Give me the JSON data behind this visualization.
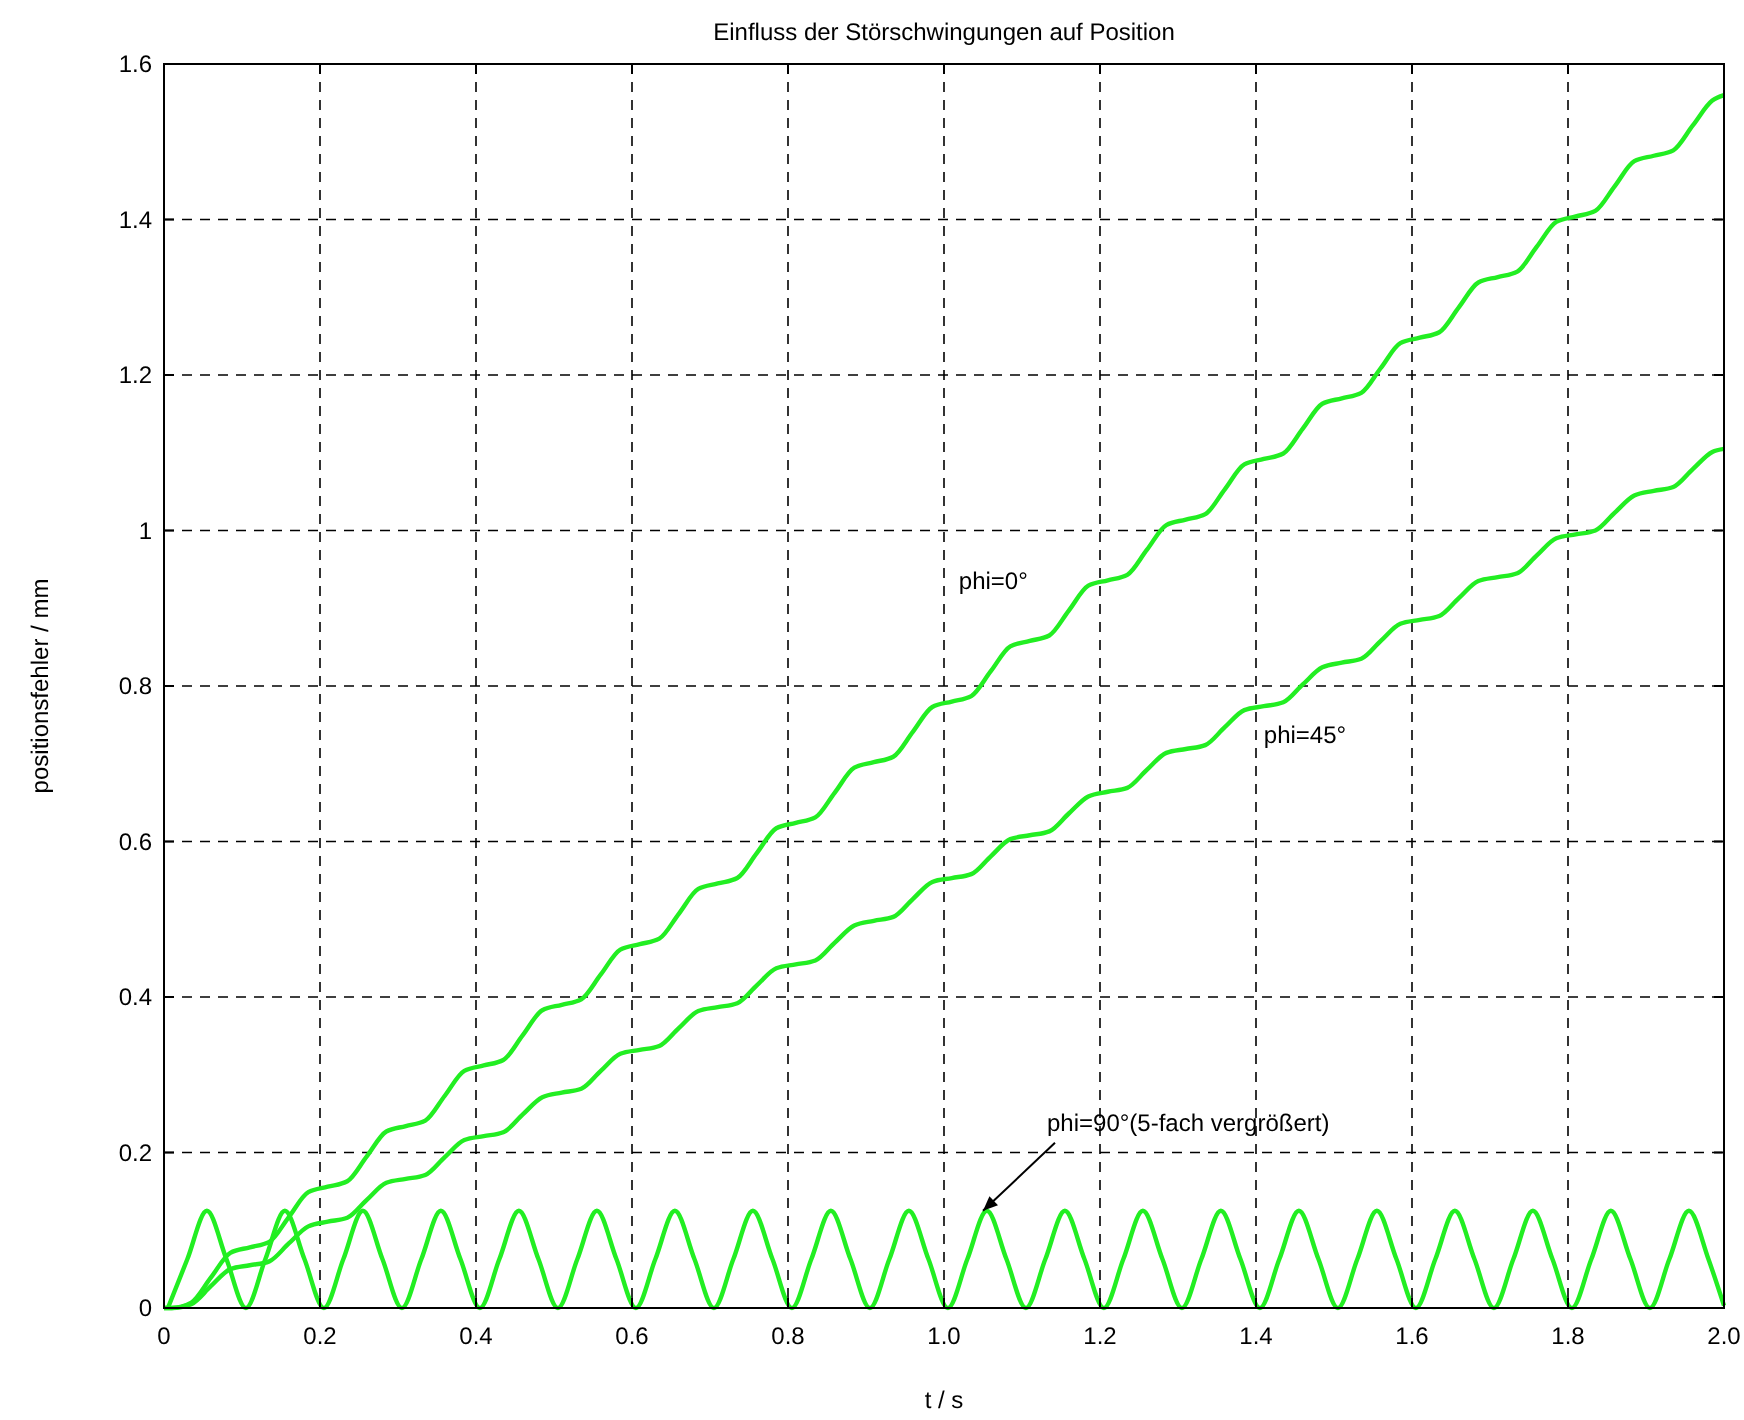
{
  "chart_data": {
    "type": "line",
    "title": "Einfluss der Störschwingungen auf Position",
    "xlabel": "t / s",
    "ylabel": "positionsfehler / mm",
    "xlim": [
      0,
      2
    ],
    "ylim": [
      0,
      1.6
    ],
    "xticks": [
      0,
      0.2,
      0.4,
      0.6,
      0.8,
      {
        "value": 1,
        "label": "1.0"
      },
      1.2,
      1.4,
      1.6,
      1.8,
      {
        "value": 2,
        "label": "2.0"
      }
    ],
    "yticks": [
      0,
      0.2,
      0.4,
      0.6,
      0.8,
      1,
      1.2,
      1.4,
      1.6
    ],
    "grid": true,
    "line_style": "solid",
    "marker": "none",
    "annotations": [
      {
        "text": "phi=90°(5-fach vergrößert)",
        "x": 1.05,
        "y": 0.125
      }
    ],
    "series": [
      {
        "name": "phi=0°",
        "color": "#22ee22",
        "x": [
          0,
          0.01,
          0.035,
          0.06,
          0.085,
          0.11,
          0.135,
          0.16,
          0.185,
          0.21,
          0.235,
          0.26,
          0.285,
          0.31,
          0.335,
          0.36,
          0.385,
          0.41,
          0.435,
          0.46,
          0.485,
          0.51,
          0.535,
          0.56,
          0.585,
          0.61,
          0.635,
          0.66,
          0.685,
          0.71,
          0.735,
          0.76,
          0.785,
          0.81,
          0.835,
          0.86,
          0.885,
          0.91,
          0.935,
          0.96,
          0.985,
          1.01,
          1.035,
          1.06,
          1.085,
          1.11,
          1.135,
          1.16,
          1.185,
          1.21,
          1.235,
          1.26,
          1.285,
          1.31,
          1.335,
          1.36,
          1.385,
          1.41,
          1.435,
          1.46,
          1.485,
          1.51,
          1.535,
          1.56,
          1.585,
          1.61,
          1.635,
          1.66,
          1.685,
          1.71,
          1.735,
          1.76,
          1.785,
          1.81,
          1.835,
          1.86,
          1.885,
          1.91,
          1.935,
          1.96,
          1.985,
          2
        ],
        "values": [
          0,
          0,
          0.007,
          0.039,
          0.071,
          0.078,
          0.085,
          0.117,
          0.149,
          0.156,
          0.163,
          0.195,
          0.227,
          0.234,
          0.241,
          0.273,
          0.305,
          0.312,
          0.319,
          0.351,
          0.383,
          0.39,
          0.397,
          0.429,
          0.461,
          0.468,
          0.475,
          0.507,
          0.539,
          0.546,
          0.553,
          0.585,
          0.617,
          0.624,
          0.631,
          0.663,
          0.695,
          0.702,
          0.709,
          0.741,
          0.773,
          0.78,
          0.787,
          0.819,
          0.851,
          0.858,
          0.865,
          0.897,
          0.929,
          0.936,
          0.943,
          0.975,
          1.007,
          1.014,
          1.021,
          1.053,
          1.085,
          1.092,
          1.099,
          1.131,
          1.163,
          1.17,
          1.177,
          1.209,
          1.241,
          1.248,
          1.255,
          1.287,
          1.319,
          1.326,
          1.333,
          1.365,
          1.397,
          1.404,
          1.411,
          1.443,
          1.475,
          1.482,
          1.489,
          1.521,
          1.553,
          1.56
        ]
      },
      {
        "name": "phi=45°",
        "color": "#22ee22",
        "x": [
          0,
          0.01,
          0.035,
          0.06,
          0.085,
          0.11,
          0.135,
          0.16,
          0.185,
          0.21,
          0.235,
          0.26,
          0.285,
          0.31,
          0.335,
          0.36,
          0.385,
          0.41,
          0.435,
          0.46,
          0.485,
          0.51,
          0.535,
          0.56,
          0.585,
          0.61,
          0.635,
          0.66,
          0.685,
          0.71,
          0.735,
          0.76,
          0.785,
          0.81,
          0.835,
          0.86,
          0.885,
          0.91,
          0.935,
          0.96,
          0.985,
          1.01,
          1.035,
          1.06,
          1.085,
          1.11,
          1.135,
          1.16,
          1.185,
          1.21,
          1.235,
          1.26,
          1.285,
          1.31,
          1.335,
          1.36,
          1.385,
          1.41,
          1.435,
          1.46,
          1.485,
          1.51,
          1.535,
          1.56,
          1.585,
          1.61,
          1.635,
          1.66,
          1.685,
          1.71,
          1.735,
          1.76,
          1.785,
          1.81,
          1.835,
          1.86,
          1.885,
          1.91,
          1.935,
          1.96,
          1.985,
          2
        ],
        "values": [
          0,
          0,
          0.005,
          0.028,
          0.05,
          0.055,
          0.06,
          0.083,
          0.105,
          0.111,
          0.116,
          0.139,
          0.161,
          0.166,
          0.171,
          0.194,
          0.216,
          0.221,
          0.226,
          0.249,
          0.271,
          0.277,
          0.282,
          0.305,
          0.327,
          0.332,
          0.337,
          0.36,
          0.382,
          0.387,
          0.392,
          0.415,
          0.437,
          0.442,
          0.447,
          0.47,
          0.492,
          0.498,
          0.503,
          0.526,
          0.548,
          0.553,
          0.558,
          0.581,
          0.603,
          0.608,
          0.613,
          0.636,
          0.658,
          0.664,
          0.669,
          0.692,
          0.714,
          0.719,
          0.724,
          0.747,
          0.769,
          0.774,
          0.779,
          0.802,
          0.824,
          0.83,
          0.835,
          0.858,
          0.88,
          0.885,
          0.89,
          0.913,
          0.935,
          0.94,
          0.945,
          0.968,
          0.99,
          0.995,
          1.0,
          1.023,
          1.045,
          1.051,
          1.056,
          1.079,
          1.101,
          1.105
        ]
      },
      {
        "color": "#22ee22",
        "x": [
          0.005,
          0.03,
          0.055,
          0.08,
          0.105,
          0.13,
          0.155,
          0.18,
          0.205,
          0.23,
          0.255,
          0.28,
          0.305,
          0.33,
          0.355,
          0.38,
          0.405,
          0.43,
          0.455,
          0.48,
          0.505,
          0.53,
          0.555,
          0.58,
          0.605,
          0.63,
          0.655,
          0.68,
          0.705,
          0.73,
          0.755,
          0.78,
          0.805,
          0.83,
          0.855,
          0.88,
          0.905,
          0.93,
          0.955,
          0.98,
          1.005,
          1.03,
          1.055,
          1.08,
          1.105,
          1.13,
          1.155,
          1.18,
          1.205,
          1.23,
          1.255,
          1.28,
          1.305,
          1.33,
          1.355,
          1.38,
          1.405,
          1.43,
          1.455,
          1.48,
          1.505,
          1.53,
          1.555,
          1.58,
          1.605,
          1.63,
          1.655,
          1.68,
          1.705,
          1.73,
          1.755,
          1.78,
          1.805,
          1.83,
          1.855,
          1.88,
          1.905,
          1.93,
          1.955,
          1.98,
          2
        ],
        "values": [
          0,
          0.063,
          0.125,
          0.063,
          0,
          0.063,
          0.125,
          0.063,
          0,
          0.063,
          0.125,
          0.063,
          0,
          0.063,
          0.125,
          0.063,
          0,
          0.063,
          0.125,
          0.063,
          0,
          0.063,
          0.125,
          0.063,
          0,
          0.063,
          0.125,
          0.063,
          0,
          0.063,
          0.125,
          0.063,
          0,
          0.063,
          0.125,
          0.063,
          0,
          0.063,
          0.125,
          0.063,
          0,
          0.063,
          0.125,
          0.063,
          0,
          0.063,
          0.125,
          0.063,
          0,
          0.063,
          0.125,
          0.063,
          0,
          0.063,
          0.125,
          0.063,
          0,
          0.063,
          0.125,
          0.063,
          0,
          0.063,
          0.125,
          0.063,
          0,
          0.063,
          0.125,
          0.063,
          0,
          0.063,
          0.125,
          0.063,
          0,
          0.063,
          0.125,
          0.063,
          0,
          0.063,
          0.125,
          0.063,
          0.003
        ]
      }
    ]
  }
}
